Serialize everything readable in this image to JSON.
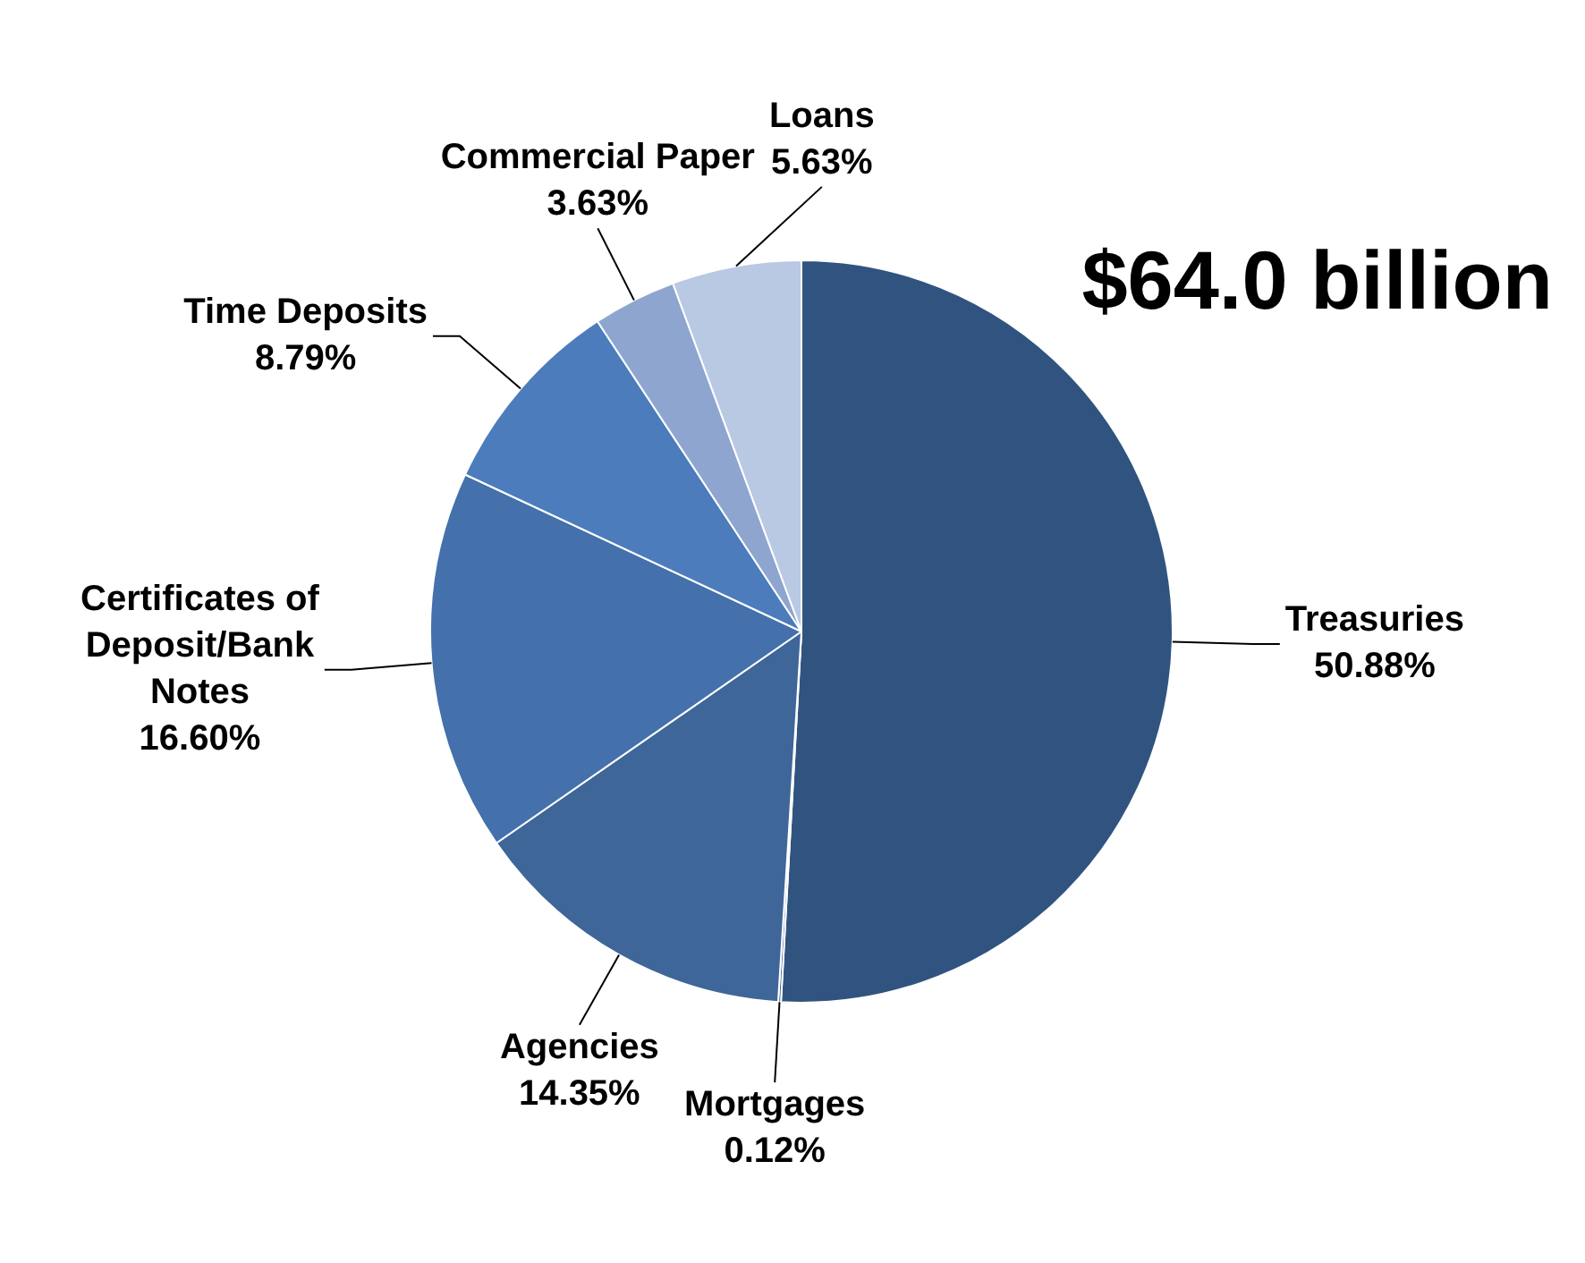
{
  "chart_data": {
    "type": "pie",
    "title": "$64.0 billion",
    "categories": [
      "Treasuries",
      "Mortgages",
      "Agencies",
      "Certificates of Deposit/Bank Notes",
      "Time Deposits",
      "Commercial Paper",
      "Loans"
    ],
    "values": [
      50.88,
      0.12,
      14.35,
      16.6,
      8.79,
      3.63,
      5.63
    ],
    "colors": [
      "#30547f",
      "#3a6090",
      "#3e6699",
      "#4470ab",
      "#4c7cbb",
      "#8ea6cf",
      "#b9c8e3"
    ],
    "value_labels": [
      "50.88%",
      "0.12%",
      "14.35%",
      "16.60%",
      "8.79%",
      "3.63%",
      "5.63%"
    ],
    "legend": false
  }
}
